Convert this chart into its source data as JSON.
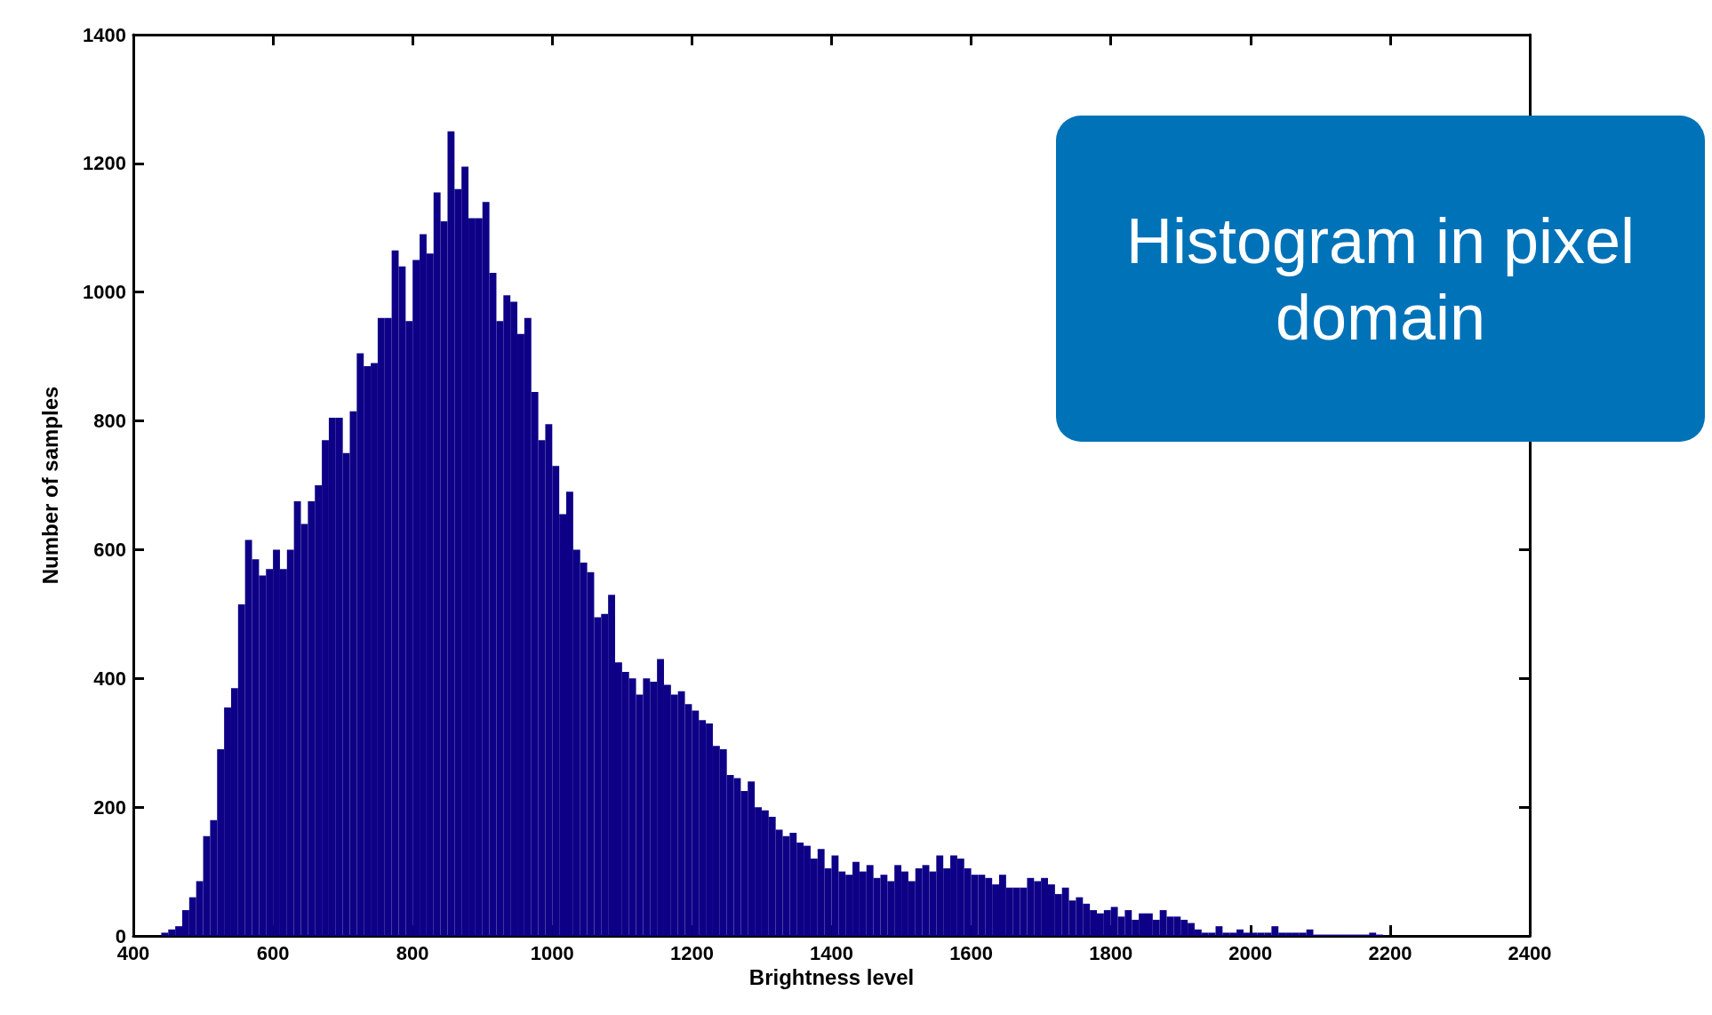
{
  "chart_data": {
    "type": "histogram",
    "xlabel": "Brightness level",
    "ylabel": "Number of samples",
    "annotations": [
      "Histogram in pixel domain"
    ],
    "color": "#0d0086",
    "xlim": [
      400,
      2400
    ],
    "xticks": [
      400,
      600,
      800,
      1000,
      1200,
      1400,
      1600,
      1800,
      2000,
      2200,
      2400
    ],
    "ylim": [
      0,
      1400
    ],
    "yticks": [
      0,
      200,
      400,
      600,
      800,
      1000,
      1200,
      1400
    ],
    "grid": false,
    "bins": [
      440,
      450,
      460,
      470,
      480,
      490,
      500,
      510,
      520,
      530,
      540,
      550,
      560,
      570,
      580,
      590,
      600,
      610,
      620,
      630,
      640,
      650,
      660,
      670,
      680,
      690,
      700,
      710,
      720,
      730,
      740,
      750,
      760,
      770,
      780,
      790,
      800,
      810,
      820,
      830,
      840,
      850,
      860,
      870,
      880,
      890,
      900,
      910,
      920,
      930,
      940,
      950,
      960,
      970,
      980,
      990,
      1000,
      1010,
      1020,
      1030,
      1040,
      1050,
      1060,
      1070,
      1080,
      1090,
      1100,
      1110,
      1120,
      1130,
      1140,
      1150,
      1160,
      1170,
      1180,
      1190,
      1200,
      1210,
      1220,
      1230,
      1240,
      1250,
      1260,
      1270,
      1280,
      1290,
      1300,
      1310,
      1320,
      1330,
      1340,
      1350,
      1360,
      1370,
      1380,
      1390,
      1400,
      1410,
      1420,
      1430,
      1440,
      1450,
      1460,
      1470,
      1480,
      1490,
      1500,
      1510,
      1520,
      1530,
      1540,
      1550,
      1560,
      1570,
      1580,
      1590,
      1600,
      1610,
      1620,
      1630,
      1640,
      1650,
      1660,
      1670,
      1680,
      1690,
      1700,
      1710,
      1720,
      1730,
      1740,
      1750,
      1760,
      1770,
      1780,
      1790,
      1800,
      1810,
      1820,
      1830,
      1840,
      1850,
      1860,
      1870,
      1880,
      1890,
      1900,
      1910,
      1920,
      1930,
      1940,
      1950,
      1960,
      1970,
      1980,
      1990,
      2000,
      2010,
      2020,
      2030,
      2040,
      2050,
      2060,
      2070,
      2080,
      2090,
      2100,
      2110,
      2120,
      2130,
      2140,
      2150,
      2160,
      2170,
      2180,
      2190
    ],
    "values": [
      5,
      10,
      15,
      40,
      60,
      85,
      155,
      180,
      290,
      355,
      385,
      515,
      615,
      585,
      560,
      570,
      600,
      570,
      600,
      675,
      640,
      675,
      700,
      770,
      805,
      805,
      750,
      815,
      905,
      885,
      890,
      960,
      960,
      1065,
      1040,
      955,
      1050,
      1090,
      1060,
      1155,
      1110,
      1250,
      1160,
      1195,
      1115,
      1115,
      1140,
      1030,
      955,
      995,
      985,
      935,
      960,
      845,
      770,
      795,
      730,
      655,
      690,
      600,
      580,
      565,
      495,
      500,
      530,
      425,
      410,
      400,
      375,
      400,
      395,
      430,
      390,
      375,
      380,
      360,
      350,
      335,
      330,
      295,
      290,
      250,
      245,
      225,
      240,
      200,
      195,
      185,
      165,
      155,
      160,
      145,
      140,
      120,
      135,
      105,
      125,
      100,
      95,
      115,
      100,
      110,
      90,
      95,
      85,
      110,
      100,
      85,
      105,
      110,
      100,
      125,
      105,
      125,
      120,
      105,
      95,
      95,
      90,
      80,
      95,
      75,
      75,
      75,
      90,
      85,
      90,
      80,
      65,
      75,
      55,
      60,
      50,
      40,
      35,
      40,
      45,
      30,
      40,
      25,
      35,
      35,
      25,
      40,
      30,
      30,
      25,
      20,
      10,
      5,
      5,
      15,
      5,
      5,
      10,
      5,
      5,
      5,
      5,
      15,
      5,
      5,
      5,
      5,
      10,
      2,
      2,
      2,
      2,
      2,
      2,
      2,
      2,
      5,
      2
    ]
  }
}
